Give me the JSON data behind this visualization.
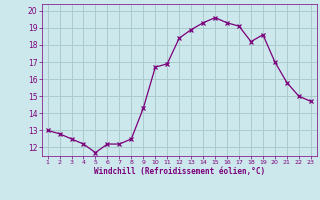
{
  "x": [
    1,
    2,
    3,
    4,
    5,
    6,
    7,
    8,
    9,
    10,
    11,
    12,
    13,
    14,
    15,
    16,
    17,
    18,
    19,
    20,
    21,
    22,
    23
  ],
  "y": [
    13.0,
    12.8,
    12.5,
    12.2,
    11.7,
    12.2,
    12.2,
    12.5,
    14.3,
    16.7,
    16.9,
    18.4,
    18.9,
    19.3,
    19.6,
    19.3,
    19.1,
    18.2,
    18.6,
    17.0,
    15.8,
    15.0,
    14.7
  ],
  "line_color": "#7B007B",
  "marker": "x",
  "marker_size": 3,
  "bg_color": "#cce8ec",
  "grid_color": "#aacccc",
  "tick_color": "#7B007B",
  "label_color": "#7B007B",
  "xlabel": "Windchill (Refroidissement éolien,°C)",
  "ylim": [
    11.5,
    20.4
  ],
  "yticks": [
    12,
    13,
    14,
    15,
    16,
    17,
    18,
    19,
    20
  ],
  "xticks": [
    1,
    2,
    3,
    4,
    5,
    6,
    7,
    8,
    9,
    10,
    11,
    12,
    13,
    14,
    15,
    16,
    17,
    18,
    19,
    20,
    21,
    22,
    23
  ]
}
